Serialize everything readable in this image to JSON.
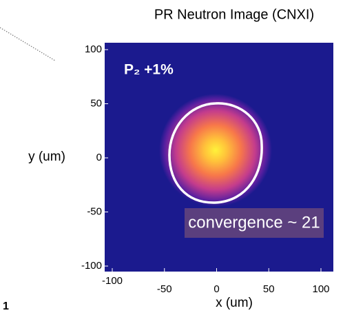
{
  "chart_data": {
    "type": "image",
    "title": "PR Neutron Image (CNXI)",
    "xlabel": "x (um)",
    "ylabel": "y (um)",
    "xlim": [
      -100,
      100
    ],
    "ylim": [
      -100,
      100
    ],
    "xticks": [
      -100,
      -50,
      0,
      50,
      100
    ],
    "yticks": [
      -100,
      -50,
      0,
      50,
      100
    ],
    "annotations": [
      "P₂ +1%",
      "convergence ~ 21"
    ],
    "edge_label": "1"
  }
}
